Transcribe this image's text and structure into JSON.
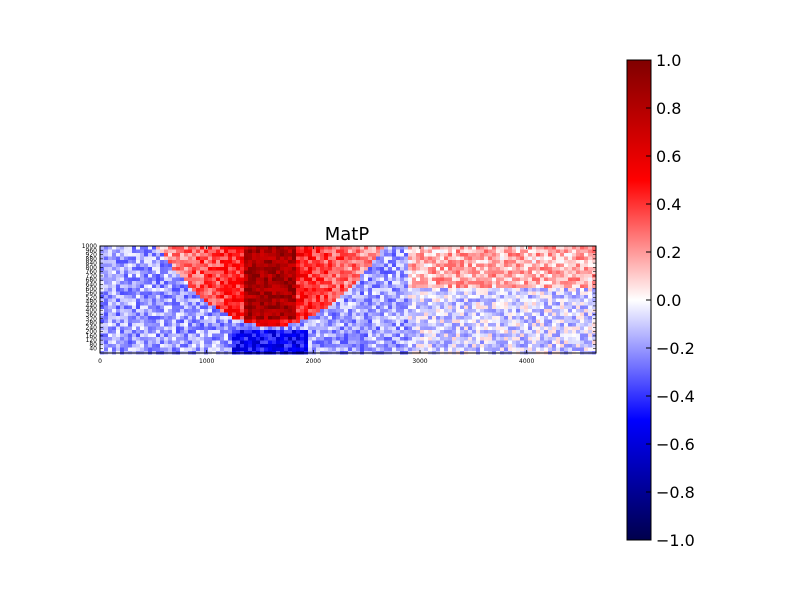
{
  "chart_data": {
    "type": "heatmap",
    "title": "MatP",
    "xlabel": "",
    "ylabel": "",
    "xlim": [
      0,
      4650
    ],
    "ylim": [
      0,
      1000
    ],
    "x_ticks": [
      {
        "value": 0,
        "label": "0"
      },
      {
        "value": 1000,
        "label": "1000"
      },
      {
        "value": 2000,
        "label": "2000"
      },
      {
        "value": 3000,
        "label": "3000"
      },
      {
        "value": 4000,
        "label": "4000"
      }
    ],
    "y_ticks": [
      {
        "value": 1000,
        "label": "1000"
      },
      {
        "value": 960,
        "label": "960"
      },
      {
        "value": 920,
        "label": "920"
      },
      {
        "value": 880,
        "label": "880"
      },
      {
        "value": 840,
        "label": "840"
      },
      {
        "value": 800,
        "label": "800"
      },
      {
        "value": 760,
        "label": "760"
      },
      {
        "value": 720,
        "label": "720"
      },
      {
        "value": 680,
        "label": "680"
      },
      {
        "value": 640,
        "label": "640"
      },
      {
        "value": 600,
        "label": "600"
      },
      {
        "value": 560,
        "label": "560"
      },
      {
        "value": 520,
        "label": "520"
      },
      {
        "value": 480,
        "label": "480"
      },
      {
        "value": 440,
        "label": "440"
      },
      {
        "value": 400,
        "label": "400"
      },
      {
        "value": 360,
        "label": "360"
      },
      {
        "value": 320,
        "label": "320"
      },
      {
        "value": 280,
        "label": "280"
      },
      {
        "value": 240,
        "label": "240"
      },
      {
        "value": 200,
        "label": "200"
      },
      {
        "value": 160,
        "label": "160"
      },
      {
        "value": 120,
        "label": "120"
      },
      {
        "value": 80,
        "label": "80"
      },
      {
        "value": 40,
        "label": "40"
      }
    ],
    "colorbar": {
      "colormap": "seismic",
      "range": [
        -1.0,
        1.0
      ],
      "ticks": [
        {
          "value": 1.0,
          "label": "1.0"
        },
        {
          "value": 0.8,
          "label": "0.8"
        },
        {
          "value": 0.6,
          "label": "0.6"
        },
        {
          "value": 0.4,
          "label": "0.4"
        },
        {
          "value": 0.2,
          "label": "0.2"
        },
        {
          "value": 0.0,
          "label": "0.0"
        },
        {
          "value": -0.2,
          "label": "−0.2"
        },
        {
          "value": -0.4,
          "label": "−0.4"
        },
        {
          "value": -0.6,
          "label": "−0.6"
        },
        {
          "value": -0.8,
          "label": "−0.8"
        },
        {
          "value": -1.0,
          "label": "−1.0"
        }
      ],
      "colors": {
        "dark_blue": "#00004c",
        "blue": "#0000ff",
        "white": "#ffffff",
        "red": "#ff0000",
        "dark_red": "#800000"
      }
    },
    "grid": false,
    "legend": "none"
  }
}
